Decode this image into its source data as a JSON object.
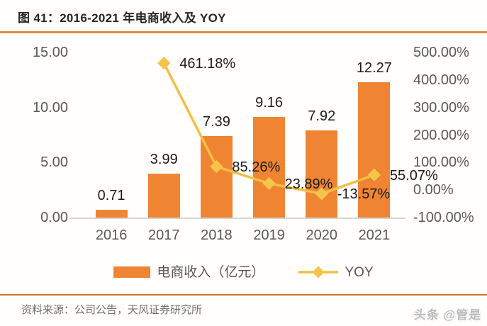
{
  "header": {
    "title": "图 41：2016-2021 年电商收入及 YOY"
  },
  "chart_data": {
    "type": "bar+line",
    "categories": [
      "2016",
      "2017",
      "2018",
      "2019",
      "2020",
      "2021"
    ],
    "series": [
      {
        "name": "电商收入（亿元）",
        "type": "bar",
        "axis": "left",
        "values": [
          0.71,
          3.99,
          7.39,
          9.16,
          7.92,
          12.27
        ],
        "labels": [
          "0.71",
          "3.99",
          "7.39",
          "9.16",
          "7.92",
          "12.27"
        ]
      },
      {
        "name": "YOY",
        "type": "line",
        "axis": "right",
        "values": [
          null,
          461.18,
          85.26,
          23.89,
          -13.57,
          55.07
        ],
        "labels": [
          null,
          "461.18%",
          "85.26%",
          "23.89%",
          "-13.57%",
          "55.07%"
        ]
      }
    ],
    "left_axis": {
      "min": 0,
      "max": 15,
      "tick_values": [
        15,
        10,
        5,
        0
      ],
      "tick_labels": [
        "15.00",
        "10.00",
        "5.00",
        "0.00"
      ]
    },
    "right_axis": {
      "min": -100,
      "max": 500,
      "tick_values": [
        500,
        400,
        300,
        200,
        100,
        0,
        -100
      ],
      "tick_labels": [
        "500.00%",
        "400.00%",
        "300.00%",
        "200.00%",
        "100.00%",
        "0.00%",
        "-100.00%"
      ]
    },
    "grid": false,
    "legend_position": "bottom"
  },
  "footer": {
    "source": "资料来源：公司公告，天风证券研究所"
  },
  "watermark": {
    "text": "头条 @管是"
  },
  "colors": {
    "bar": "#EF8533",
    "line": "#F3BF45",
    "marker": "#F6C44A",
    "divider-top": "#DC8B41",
    "divider-bottom": "#C27A3F",
    "axis-text": "#595959",
    "label-text": "#1b1b1b",
    "title-text": "#262626",
    "source-text": "#6f6f6f",
    "baseline": "#D5D5D5",
    "watermark": "#bcbcbc"
  }
}
